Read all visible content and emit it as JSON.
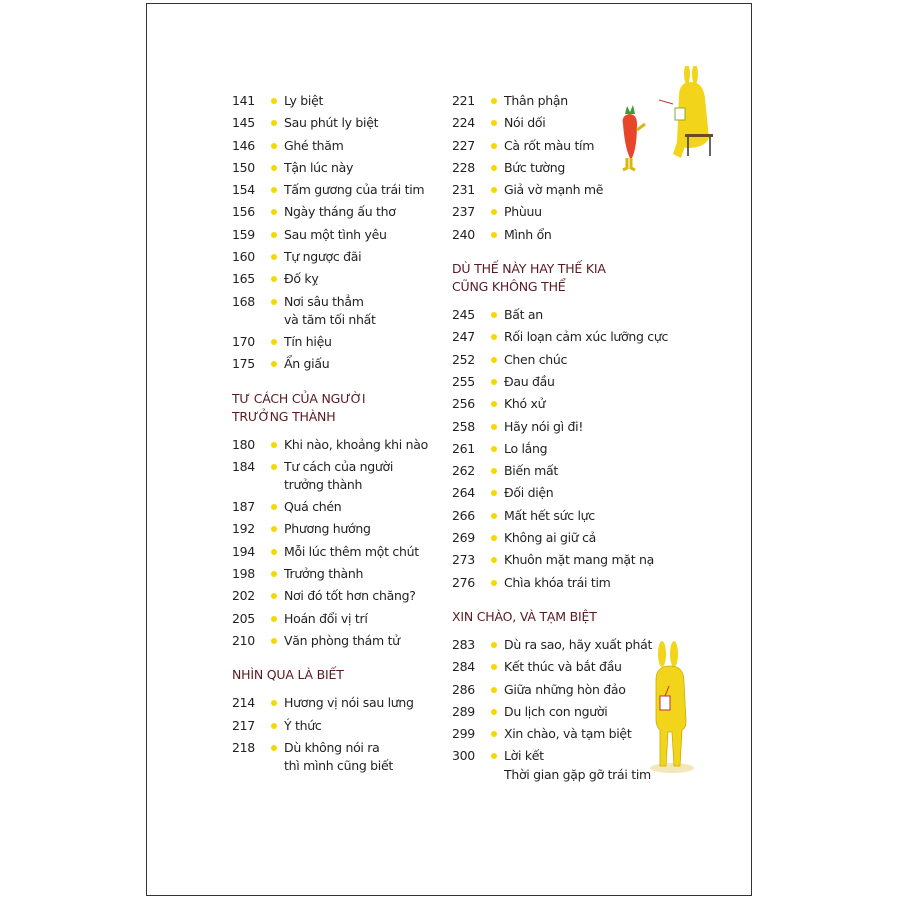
{
  "columns": [
    {
      "blocks": [
        {
          "heading": null,
          "entries": [
            {
              "page": "141",
              "title": [
                "Ly biệt"
              ]
            },
            {
              "page": "145",
              "title": [
                "Sau phút ly biệt"
              ]
            },
            {
              "page": "146",
              "title": [
                "Ghé thăm"
              ]
            },
            {
              "page": "150",
              "title": [
                "Tận lúc này"
              ]
            },
            {
              "page": "154",
              "title": [
                "Tấm gương của trái tim"
              ]
            },
            {
              "page": "156",
              "title": [
                "Ngày tháng ấu thơ"
              ]
            },
            {
              "page": "159",
              "title": [
                "Sau một tình yêu"
              ]
            },
            {
              "page": "160",
              "title": [
                "Tự ngược đãi"
              ]
            },
            {
              "page": "165",
              "title": [
                "Đố kỵ"
              ]
            },
            {
              "page": "168",
              "title": [
                "Nơi sâu thẳm",
                "và tăm tối nhất"
              ]
            },
            {
              "page": "170",
              "title": [
                "Tín hiệu"
              ]
            },
            {
              "page": "175",
              "title": [
                "Ẩn giấu"
              ]
            }
          ]
        },
        {
          "heading": [
            "TƯ CÁCH CỦA NGƯỜI",
            "TRƯỞNG THÀNH"
          ],
          "entries": [
            {
              "page": "180",
              "title": [
                "Khi nào, khoảng khi nào"
              ]
            },
            {
              "page": "184",
              "title": [
                "Tư cách của người",
                "trưởng thành"
              ]
            },
            {
              "page": "187",
              "title": [
                "Quá chén"
              ]
            },
            {
              "page": "192",
              "title": [
                "Phương hướng"
              ]
            },
            {
              "page": "194",
              "title": [
                "Mỗi lúc thêm một chút"
              ]
            },
            {
              "page": "198",
              "title": [
                "Trưởng thành"
              ]
            },
            {
              "page": "202",
              "title": [
                "Nơi đó tốt hơn chăng?"
              ]
            },
            {
              "page": "205",
              "title": [
                "Hoán đổi vị trí"
              ]
            },
            {
              "page": "210",
              "title": [
                "Văn phòng thám tử"
              ]
            }
          ]
        },
        {
          "heading": [
            "NHÌN QUA LÀ BIẾT"
          ],
          "entries": [
            {
              "page": "214",
              "title": [
                "Hương vị nói sau lưng"
              ]
            },
            {
              "page": "217",
              "title": [
                "Ý thức"
              ]
            },
            {
              "page": "218",
              "title": [
                "Dù không nói ra",
                "thì mình cũng biết"
              ]
            }
          ]
        }
      ]
    },
    {
      "blocks": [
        {
          "heading": null,
          "entries": [
            {
              "page": "221",
              "title": [
                "Thân phận"
              ]
            },
            {
              "page": "224",
              "title": [
                "Nói dối"
              ]
            },
            {
              "page": "227",
              "title": [
                "Cà rốt màu tím"
              ]
            },
            {
              "page": "228",
              "title": [
                "Bức tường"
              ]
            },
            {
              "page": "231",
              "title": [
                "Giả vờ mạnh mẽ"
              ]
            },
            {
              "page": "237",
              "title": [
                "Phùuu"
              ]
            },
            {
              "page": "240",
              "title": [
                "Mình ổn"
              ]
            }
          ]
        },
        {
          "heading": [
            "DÙ THẾ NÀY HAY THẾ KIA",
            "CŨNG KHÔNG THỂ"
          ],
          "entries": [
            {
              "page": "245",
              "title": [
                "Bất an"
              ]
            },
            {
              "page": "247",
              "title": [
                "Rối loạn cảm xúc lưỡng cực"
              ]
            },
            {
              "page": "252",
              "title": [
                "Chen chúc"
              ]
            },
            {
              "page": "255",
              "title": [
                "Đau đầu"
              ]
            },
            {
              "page": "256",
              "title": [
                "Khó xử"
              ]
            },
            {
              "page": "258",
              "title": [
                "Hãy nói gì đi!"
              ]
            },
            {
              "page": "261",
              "title": [
                "Lo lắng"
              ]
            },
            {
              "page": "262",
              "title": [
                "Biến mất"
              ]
            },
            {
              "page": "264",
              "title": [
                "Đối diện"
              ]
            },
            {
              "page": "266",
              "title": [
                "Mất hết sức lực"
              ]
            },
            {
              "page": "269",
              "title": [
                "Không ai giữ cả"
              ]
            },
            {
              "page": "273",
              "title": [
                "Khuôn mặt mang mặt nạ"
              ]
            },
            {
              "page": "276",
              "title": [
                "Chìa khóa trái tim"
              ]
            }
          ]
        },
        {
          "heading": [
            "XIN CHÀO, VÀ TẠM BIỆT"
          ],
          "entries": [
            {
              "page": "283",
              "title": [
                "Dù ra sao, hãy xuất phát"
              ]
            },
            {
              "page": "284",
              "title": [
                "Kết thúc và bắt đầu"
              ]
            },
            {
              "page": "286",
              "title": [
                "Giữa những hòn đảo"
              ]
            },
            {
              "page": "289",
              "title": [
                "Du lịch con người"
              ]
            },
            {
              "page": "299",
              "title": [
                "Xin chào, và tạm biệt"
              ]
            },
            {
              "page": "300",
              "title": [
                "Lời kết",
                "Thời gian gặp gỡ trái tim"
              ]
            }
          ]
        }
      ]
    }
  ],
  "colors": {
    "bullet": "#f5d800",
    "heading": "#5a1a22",
    "text": "#231f20",
    "bunny": "#f2d51a",
    "carrot": "#e8452a"
  }
}
